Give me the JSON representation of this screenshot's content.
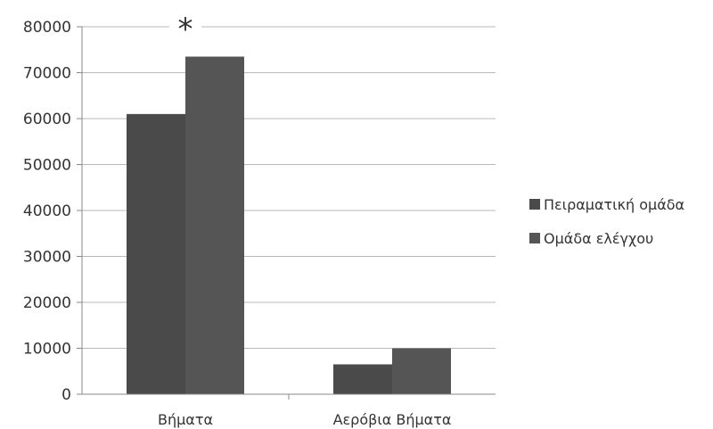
{
  "chart_data": {
    "type": "bar",
    "title": "",
    "xlabel": "",
    "ylabel": "",
    "categories": [
      "Βήματα",
      "Αερόβια Βήματα"
    ],
    "series": [
      {
        "name": "Πειραματική ομάδα",
        "values": [
          61000,
          6500
        ],
        "color": "#4a4a4a"
      },
      {
        "name": "Ομάδα ελέγχου",
        "values": [
          73500,
          10000
        ],
        "color": "#555555"
      }
    ],
    "ylim": [
      0,
      80000
    ],
    "yticks": [
      0,
      10000,
      20000,
      30000,
      40000,
      50000,
      60000,
      70000,
      80000
    ],
    "grid": true,
    "legend_position": "right",
    "annotations": [
      {
        "text": "*",
        "category": "Βήματα"
      }
    ]
  }
}
